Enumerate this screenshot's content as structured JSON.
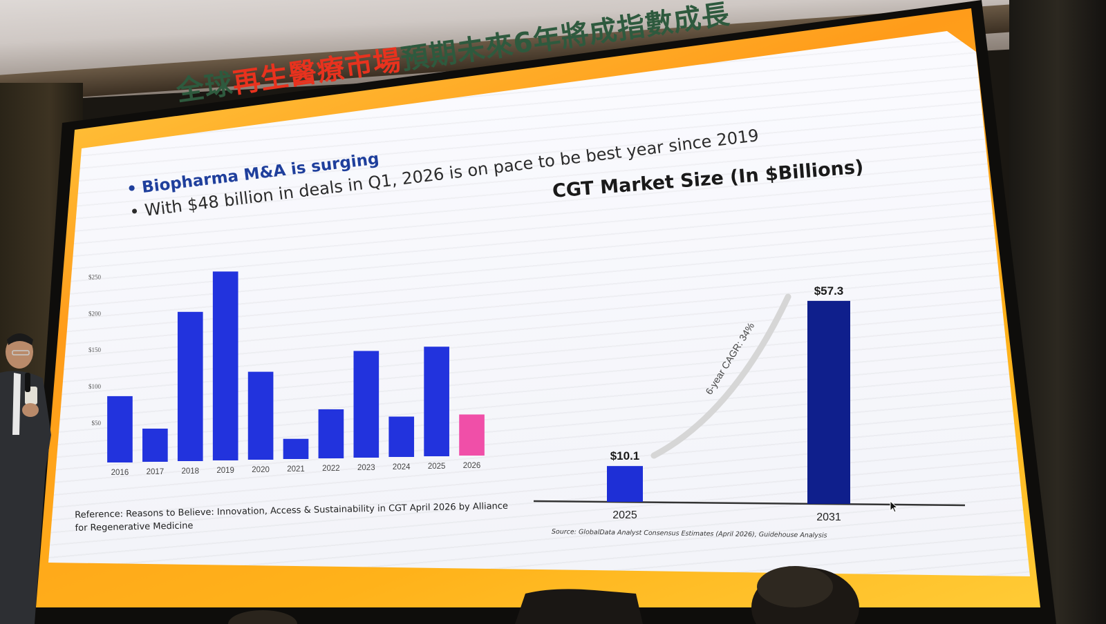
{
  "slide": {
    "title_part1": "全球",
    "title_highlight": "再生醫療市場",
    "title_part2": "預期未來6年將成指數成長",
    "bullet1": "Biopharma M&A is surging",
    "bullet2": "With $48 billion in deals in Q1, 2026 is on pace to be best year since 2019",
    "right_chart_title": "CGT Market Size (In $Billions)",
    "reference": "Reference: Reasons to Believe: Innovation, Access & Sustainability in CGT  April 2026 by Alliance for Regenerative Medicine",
    "source": "Source: GlobalData Analyst Consensus Estimates (April 2026), Guidehouse Analysis"
  },
  "chart_data": [
    {
      "type": "bar",
      "title": "",
      "categories": [
        "2016",
        "2017",
        "2018",
        "2019",
        "2020",
        "2021",
        "2022",
        "2023",
        "2024",
        "2025",
        "2026"
      ],
      "values": [
        92,
        46,
        207,
        262,
        122,
        28,
        68,
        148,
        56,
        152,
        57
      ],
      "colors": [
        "#2233dd",
        "#2233dd",
        "#2233dd",
        "#2233dd",
        "#2233dd",
        "#2233dd",
        "#2233dd",
        "#2233dd",
        "#2233dd",
        "#2233dd",
        "#f04fa8"
      ],
      "yticks": [
        "$50",
        "$100",
        "$150",
        "$200",
        "$250"
      ],
      "ytick_values": [
        50,
        100,
        150,
        200,
        250
      ],
      "ylim": [
        0,
        270
      ],
      "grid": false
    },
    {
      "type": "bar",
      "title": "CGT Market Size (In $Billions)",
      "categories": [
        "2025",
        "2031"
      ],
      "values": [
        10.1,
        57.3
      ],
      "value_labels": [
        "$10.1",
        "$57.3"
      ],
      "colors": [
        "#1e2fd6",
        "#0f1f8c"
      ],
      "annotation": "6-year CAGR: 34%",
      "ylim": [
        0,
        60
      ]
    }
  ],
  "colors": {
    "accent_red": "#e8321e",
    "title_green": "#2e5a3e",
    "bullet_blue": "#1f3f9c",
    "bar_blue": "#2233dd",
    "bar_pink": "#f04fa8",
    "bar_navy": "#0f1f8c",
    "frame_orange": "#ff9c1a"
  }
}
